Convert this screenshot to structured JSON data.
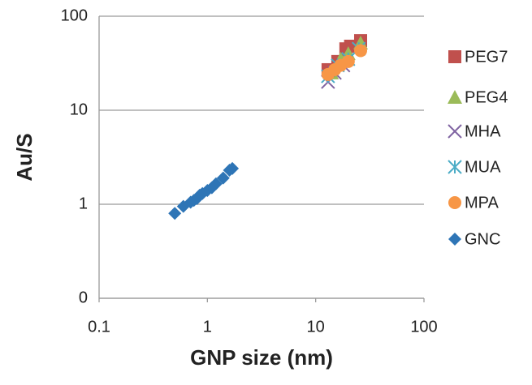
{
  "chart_data": {
    "type": "scatter",
    "x_label": "GNP size (nm)",
    "y_label": "Au/S",
    "xlim": [
      0.1,
      100
    ],
    "xticks": [
      0.1,
      1,
      10,
      100
    ],
    "x_log": true,
    "ylim": [
      0.1,
      100
    ],
    "yticks": [
      {
        "value": 0.1,
        "label": "0"
      },
      1,
      10,
      100
    ],
    "y_log": true,
    "grid": true,
    "legend": "right",
    "series": [
      {
        "name": "PEG7",
        "color": "#c0504d",
        "marker": "square",
        "x": [
          13,
          16,
          19,
          21,
          26
        ],
        "values": [
          27,
          33,
          45,
          48,
          55
        ]
      },
      {
        "name": "PEG4",
        "color": "#9bbb59",
        "marker": "triangle",
        "x": [
          14,
          17,
          20,
          26
        ],
        "values": [
          25,
          35,
          40,
          52
        ]
      },
      {
        "name": "MHA",
        "color": "#8064a2",
        "marker": "x",
        "x": [
          13,
          15,
          18
        ],
        "values": [
          20,
          25,
          30
        ]
      },
      {
        "name": "MUA",
        "color": "#4bacc6",
        "marker": "asterisk",
        "x": [
          13,
          16,
          20,
          25
        ],
        "values": [
          23,
          30,
          35,
          45
        ]
      },
      {
        "name": "MPA",
        "color": "#f79646",
        "marker": "circle",
        "x": [
          13,
          15,
          17,
          20,
          26
        ],
        "values": [
          24,
          27,
          30,
          33,
          43
        ]
      },
      {
        "name": "GNC",
        "color": "#2e75b6",
        "marker": "diamond",
        "x": [
          0.5,
          0.6,
          0.7,
          0.75,
          0.8,
          0.85,
          0.9,
          1.0,
          1.1,
          1.2,
          1.4,
          1.6,
          1.7
        ],
        "values": [
          0.8,
          0.95,
          1.05,
          1.1,
          1.15,
          1.25,
          1.3,
          1.4,
          1.5,
          1.65,
          1.9,
          2.3,
          2.4
        ]
      }
    ]
  }
}
